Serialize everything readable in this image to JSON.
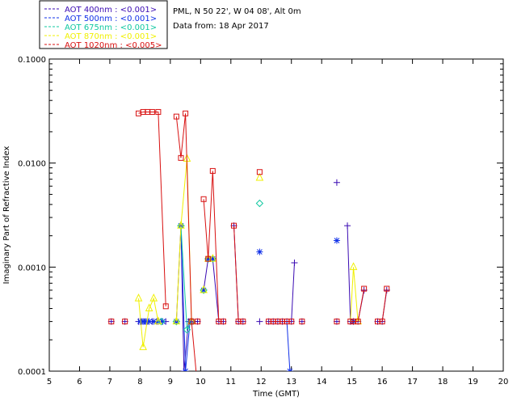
{
  "header": {
    "site": "PML, N 50 22', W 04 08', Alt 0m",
    "date": "Data from: 18 Apr 2017"
  },
  "chart_data": {
    "type": "scatter",
    "xlabel": "Time (GMT)",
    "ylabel": "Imaginary Part of Refractive Index",
    "xlim": [
      5,
      20
    ],
    "ylim": [
      0.0001,
      0.1
    ],
    "y_scale": "log",
    "x_ticks": [
      "5",
      "6",
      "7",
      "8",
      "9",
      "10",
      "11",
      "12",
      "13",
      "14",
      "15",
      "16",
      "17",
      "18",
      "19",
      "20"
    ],
    "y_ticks": [
      {
        "value": 0.0001,
        "label": "0.0001"
      },
      {
        "value": 0.001,
        "label": "0.0010"
      },
      {
        "value": 0.01,
        "label": "0.0100"
      },
      {
        "value": 0.1,
        "label": "0.1000"
      }
    ],
    "legend_position": "top-left, outside plot",
    "series": [
      {
        "name": "AOT  400nm : <0.001>",
        "color": "#3a0ab3",
        "marker": "plus",
        "points": [
          [
            7.05,
            0.0003
          ],
          [
            7.5,
            0.0003
          ],
          [
            7.95,
            0.0003
          ],
          [
            8.05,
            0.0003
          ],
          [
            8.15,
            0.0003
          ],
          [
            8.25,
            0.0003
          ],
          [
            8.4,
            0.0003
          ],
          [
            8.55,
            0.0003
          ],
          [
            8.7,
            0.0003
          ],
          [
            8.85,
            0.0003
          ],
          [
            9.2,
            0.0003
          ],
          [
            9.35,
            0.0025
          ],
          [
            9.45,
            0.0001
          ],
          [
            9.6,
            0.0003
          ],
          [
            9.75,
            0.0003
          ],
          [
            9.9,
            0.0003
          ],
          [
            10.1,
            0.0006
          ],
          [
            10.25,
            0.0012
          ],
          [
            10.4,
            0.0012
          ],
          [
            10.6,
            0.0003
          ],
          [
            10.75,
            0.0003
          ],
          [
            11.1,
            0.0025
          ],
          [
            11.25,
            0.0003
          ],
          [
            11.4,
            0.0003
          ],
          [
            11.95,
            0.0003
          ],
          [
            12.25,
            0.0003
          ],
          [
            12.4,
            0.0003
          ],
          [
            12.55,
            0.0003
          ],
          [
            12.7,
            0.0003
          ],
          [
            12.85,
            0.0003
          ],
          [
            13.0,
            0.0003
          ],
          [
            13.1,
            0.0011
          ],
          [
            13.35,
            0.0003
          ],
          [
            14.5,
            0.0065
          ],
          [
            14.5,
            0.0003
          ],
          [
            14.85,
            0.0025
          ],
          [
            14.95,
            0.0003
          ],
          [
            15.05,
            0.0003
          ],
          [
            15.2,
            0.0003
          ],
          [
            15.4,
            0.0006
          ],
          [
            15.85,
            0.0003
          ],
          [
            16.0,
            0.0003
          ],
          [
            16.15,
            0.0006
          ]
        ],
        "segments": [
          [
            [
              7.95,
              0.0003
            ],
            [
              8.05,
              0.0003
            ],
            [
              8.15,
              0.0003
            ],
            [
              8.25,
              0.0003
            ],
            [
              8.4,
              0.0003
            ],
            [
              8.55,
              0.0003
            ],
            [
              8.7,
              0.0003
            ],
            [
              8.85,
              0.0003
            ]
          ],
          [
            [
              9.2,
              0.0003
            ],
            [
              9.35,
              0.0025
            ],
            [
              9.45,
              0.0001
            ],
            [
              9.6,
              0.0003
            ],
            [
              9.75,
              0.0003
            ],
            [
              9.9,
              0.0003
            ]
          ],
          [
            [
              10.1,
              0.0006
            ],
            [
              10.25,
              0.0012
            ],
            [
              10.4,
              0.0012
            ],
            [
              10.6,
              0.0003
            ],
            [
              10.75,
              0.0003
            ]
          ],
          [
            [
              11.1,
              0.0025
            ],
            [
              11.25,
              0.0003
            ],
            [
              11.4,
              0.0003
            ]
          ],
          [
            [
              12.25,
              0.0003
            ],
            [
              12.4,
              0.0003
            ],
            [
              12.55,
              0.0003
            ],
            [
              12.7,
              0.0003
            ],
            [
              12.85,
              0.0003
            ],
            [
              13.0,
              0.0003
            ],
            [
              13.1,
              0.0011
            ]
          ],
          [
            [
              14.85,
              0.0025
            ],
            [
              14.95,
              0.0003
            ],
            [
              15.05,
              0.0003
            ],
            [
              15.2,
              0.0003
            ],
            [
              15.4,
              0.0006
            ]
          ],
          [
            [
              15.85,
              0.0003
            ],
            [
              16.0,
              0.0003
            ],
            [
              16.15,
              0.0006
            ]
          ]
        ]
      },
      {
        "name": "AOT  500nm : <0.001>",
        "color": "#1030e8",
        "marker": "asterisk",
        "points": [
          [
            8.0,
            0.0003
          ],
          [
            8.1,
            0.0003
          ],
          [
            8.2,
            0.0003
          ],
          [
            8.3,
            0.0003
          ],
          [
            8.45,
            0.0003
          ],
          [
            8.6,
            0.0003
          ],
          [
            8.75,
            0.0003
          ],
          [
            9.2,
            0.0003
          ],
          [
            9.35,
            0.0025
          ],
          [
            9.5,
            0.0001
          ],
          [
            9.65,
            0.0003
          ],
          [
            10.1,
            0.0006
          ],
          [
            10.25,
            0.0012
          ],
          [
            10.4,
            0.0012
          ],
          [
            11.95,
            0.0014
          ],
          [
            12.95,
            0.0001
          ],
          [
            14.5,
            0.0018
          ],
          [
            15.05,
            0.0003
          ]
        ],
        "segments": [
          [
            [
              9.35,
              0.0025
            ],
            [
              9.5,
              0.0001
            ],
            [
              9.65,
              0.0003
            ]
          ],
          [
            [
              12.85,
              0.0003
            ],
            [
              12.95,
              0.0001
            ]
          ]
        ]
      },
      {
        "name": "AOT  675nm : <0.001>",
        "color": "#10c8a0",
        "marker": "diamond",
        "points": [
          [
            8.7,
            0.0003
          ],
          [
            9.2,
            0.0003
          ],
          [
            9.35,
            0.0025
          ],
          [
            9.55,
            0.00025
          ],
          [
            9.7,
            0.0003
          ],
          [
            10.1,
            0.0006
          ],
          [
            10.25,
            0.0012
          ],
          [
            10.4,
            0.0012
          ],
          [
            11.95,
            0.0041
          ]
        ],
        "segments": [
          [
            [
              9.35,
              0.0025
            ],
            [
              9.55,
              0.00025
            ],
            [
              9.7,
              0.0003
            ]
          ]
        ]
      },
      {
        "name": "AOT  870nm : <0.001>",
        "color": "#f0f000",
        "marker": "triangle",
        "points": [
          [
            7.95,
            0.0005
          ],
          [
            8.1,
            0.00017
          ],
          [
            8.3,
            0.0004
          ],
          [
            8.45,
            0.0005
          ],
          [
            8.6,
            0.0003
          ],
          [
            9.2,
            0.0003
          ],
          [
            9.35,
            0.0025
          ],
          [
            9.55,
            0.011
          ],
          [
            9.7,
            0.0003
          ],
          [
            10.1,
            0.0006
          ],
          [
            10.25,
            0.0012
          ],
          [
            10.4,
            0.0012
          ],
          [
            11.95,
            0.0072
          ],
          [
            15.05,
            0.001
          ],
          [
            15.2,
            0.0003
          ]
        ],
        "segments": [
          [
            [
              7.95,
              0.0005
            ],
            [
              8.1,
              0.00017
            ],
            [
              8.3,
              0.0004
            ],
            [
              8.45,
              0.0005
            ],
            [
              8.6,
              0.0003
            ]
          ],
          [
            [
              9.2,
              0.0003
            ],
            [
              9.35,
              0.0025
            ],
            [
              9.55,
              0.011
            ],
            [
              9.7,
              0.0003
            ]
          ],
          [
            [
              14.95,
              0.0003
            ],
            [
              15.05,
              0.001
            ],
            [
              15.2,
              0.0003
            ]
          ]
        ]
      },
      {
        "name": "AOT 1020nm : <0.005>",
        "color": "#d81010",
        "marker": "square",
        "points": [
          [
            7.05,
            0.0003
          ],
          [
            7.5,
            0.0003
          ],
          [
            7.95,
            0.03
          ],
          [
            8.1,
            0.031
          ],
          [
            8.25,
            0.031
          ],
          [
            8.4,
            0.031
          ],
          [
            8.6,
            0.031
          ],
          [
            8.85,
            0.00042
          ],
          [
            9.2,
            0.028
          ],
          [
            9.35,
            0.0112
          ],
          [
            9.5,
            0.03
          ],
          [
            9.7,
            0.0003
          ],
          [
            9.9,
            0.0003
          ],
          [
            10.1,
            0.0045
          ],
          [
            10.25,
            0.0012
          ],
          [
            10.4,
            0.0084
          ],
          [
            10.6,
            0.0003
          ],
          [
            10.75,
            0.0003
          ],
          [
            11.1,
            0.0025
          ],
          [
            11.25,
            0.0003
          ],
          [
            11.4,
            0.0003
          ],
          [
            11.95,
            0.0082
          ],
          [
            12.25,
            0.0003
          ],
          [
            12.4,
            0.0003
          ],
          [
            12.55,
            0.0003
          ],
          [
            12.7,
            0.0003
          ],
          [
            12.85,
            0.0003
          ],
          [
            13.0,
            0.0003
          ],
          [
            13.35,
            0.0003
          ],
          [
            14.5,
            0.0003
          ],
          [
            14.95,
            0.0003
          ],
          [
            15.05,
            0.0003
          ],
          [
            15.2,
            0.0003
          ],
          [
            15.4,
            0.00062
          ],
          [
            15.85,
            0.0003
          ],
          [
            16.0,
            0.0003
          ],
          [
            16.15,
            0.00062
          ]
        ],
        "segments": [
          [
            [
              7.95,
              0.03
            ],
            [
              8.1,
              0.031
            ],
            [
              8.25,
              0.031
            ],
            [
              8.4,
              0.031
            ],
            [
              8.6,
              0.031
            ],
            [
              8.85,
              0.00042
            ]
          ],
          [
            [
              9.2,
              0.028
            ],
            [
              9.35,
              0.0112
            ],
            [
              9.5,
              0.03
            ],
            [
              9.7,
              0.0003
            ],
            [
              9.85,
              0.0001
            ]
          ],
          [
            [
              10.1,
              0.0045
            ],
            [
              10.25,
              0.0012
            ],
            [
              10.4,
              0.0084
            ],
            [
              10.6,
              0.0003
            ],
            [
              10.75,
              0.0003
            ]
          ],
          [
            [
              11.1,
              0.0025
            ],
            [
              11.25,
              0.0003
            ],
            [
              11.4,
              0.0003
            ]
          ],
          [
            [
              12.25,
              0.0003
            ],
            [
              12.4,
              0.0003
            ],
            [
              12.55,
              0.0003
            ],
            [
              12.7,
              0.0003
            ],
            [
              12.85,
              0.0003
            ],
            [
              13.0,
              0.0003
            ]
          ],
          [
            [
              14.95,
              0.0003
            ],
            [
              15.05,
              0.0003
            ],
            [
              15.2,
              0.0003
            ],
            [
              15.4,
              0.00062
            ]
          ],
          [
            [
              15.85,
              0.0003
            ],
            [
              16.0,
              0.0003
            ],
            [
              16.15,
              0.00062
            ]
          ]
        ]
      }
    ]
  }
}
